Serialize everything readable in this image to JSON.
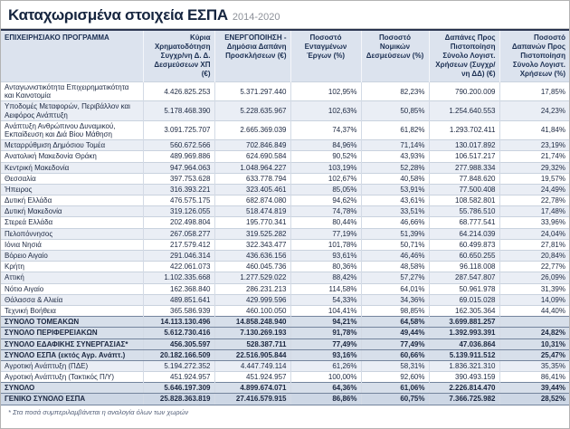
{
  "chart_data": {
    "type": "table",
    "title": "Καταχωρισμένα στοιχεία ΕΣΠΑ",
    "subtitle": "2014-2020",
    "columns": [
      "ΕΠΙΧΕΙΡΗΣΙΑΚΟ ΠΡΟΓΡΑΜΜΑ",
      "Κύρια Χρηματοδότηση Συγχρ/νη Δ. Δ. Δεσμεύσεων ΧΠ (€)",
      "ΕΝΕΡΓΟΠΟΙΗΣΗ - Δημόσια Δαπάνη Προσκλήσεων (€)",
      "Ποσοστό Ενταγμένων Έργων (%)",
      "Ποσοστό Νομικών Δεσμεύσεων (%)",
      "Δαπάνες Προς Πιστοποίηση Σύνολο Λογιστ. Χρήσεων (Συγχρ/νη ΔΔ) (€)",
      "Ποσοστό Δαπανών Προς Πιστοποίηση Σύνολο Λογιστ. Χρήσεων (%)"
    ],
    "rows": [
      {
        "program": "Ανταγωνιστικότητα Επιχειρηματικότητα και Καινοτομία",
        "values": [
          "4.426.825.253",
          "5.371.297.440",
          "102,95%",
          "82,23%",
          "790.200.009",
          "17,85%"
        ],
        "row_style": "normal"
      },
      {
        "program": "Υποδομές Μεταφορών, Περιβάλλον και Αειφόρος Ανάπτυξη",
        "values": [
          "5.178.468.390",
          "5.228.635.967",
          "102,63%",
          "50,85%",
          "1.254.640.553",
          "24,23%"
        ],
        "row_style": "normal"
      },
      {
        "program": "Ανάπτυξη Ανθρώπινου Δυναμικού, Εκπαίδευση και Διά Βίου Μάθηση",
        "values": [
          "3.091.725.707",
          "2.665.369.039",
          "74,37%",
          "61,82%",
          "1.293.702.411",
          "41,84%"
        ],
        "row_style": "normal"
      },
      {
        "program": "Μεταρρύθμιση Δημόσιου Τομέα",
        "values": [
          "560.672.566",
          "702.846.849",
          "84,96%",
          "71,14%",
          "130.017.892",
          "23,19%"
        ],
        "row_style": "normal"
      },
      {
        "program": "Ανατολική Μακεδονία Θράκη",
        "values": [
          "489.969.886",
          "624.690.584",
          "90,52%",
          "43,93%",
          "106.517.217",
          "21,74%"
        ],
        "row_style": "normal"
      },
      {
        "program": "Κεντρική Μακεδονία",
        "values": [
          "947.964.063",
          "1.048.964.227",
          "103,19%",
          "52,28%",
          "277.988.334",
          "29,32%"
        ],
        "row_style": "normal"
      },
      {
        "program": "Θεσσαλία",
        "values": [
          "397.753.628",
          "633.778.794",
          "102,67%",
          "40,58%",
          "77.848.620",
          "19,57%"
        ],
        "row_style": "normal"
      },
      {
        "program": "Ήπειρος",
        "values": [
          "316.393.221",
          "323.405.461",
          "85,05%",
          "53,91%",
          "77.500.408",
          "24,49%"
        ],
        "row_style": "normal"
      },
      {
        "program": "Δυτική Ελλάδα",
        "values": [
          "476.575.175",
          "682.874.080",
          "94,62%",
          "43,61%",
          "108.582.801",
          "22,78%"
        ],
        "row_style": "normal"
      },
      {
        "program": "Δυτική Μακεδονία",
        "values": [
          "319.126.055",
          "518.474.819",
          "74,78%",
          "33,51%",
          "55.786.510",
          "17,48%"
        ],
        "row_style": "normal"
      },
      {
        "program": "Στερεά Ελλάδα",
        "values": [
          "202.498.804",
          "195.770.341",
          "80,44%",
          "46,66%",
          "68.777.541",
          "33,96%"
        ],
        "row_style": "normal"
      },
      {
        "program": "Πελοπόννησος",
        "values": [
          "267.058.277",
          "319.525.282",
          "77,19%",
          "51,39%",
          "64.214.039",
          "24,04%"
        ],
        "row_style": "normal"
      },
      {
        "program": "Ιόνια Νησιά",
        "values": [
          "217.579.412",
          "322.343.477",
          "101,78%",
          "50,71%",
          "60.499.873",
          "27,81%"
        ],
        "row_style": "normal"
      },
      {
        "program": "Βόρειο Αιγαίο",
        "values": [
          "291.046.314",
          "436.636.156",
          "93,61%",
          "46,46%",
          "60.650.255",
          "20,84%"
        ],
        "row_style": "normal"
      },
      {
        "program": "Κρήτη",
        "values": [
          "422.061.073",
          "460.045.736",
          "80,36%",
          "48,58%",
          "96.118.008",
          "22,77%"
        ],
        "row_style": "normal"
      },
      {
        "program": "Αττική",
        "values": [
          "1.102.335.668",
          "1.277.529.022",
          "88,42%",
          "57,27%",
          "287.547.807",
          "26,09%"
        ],
        "row_style": "normal"
      },
      {
        "program": "Νότιο Αιγαίο",
        "values": [
          "162.368.840",
          "286.231.213",
          "114,58%",
          "64,01%",
          "50.961.978",
          "31,39%"
        ],
        "row_style": "normal"
      },
      {
        "program": "Θάλασσα & Αλιεία",
        "values": [
          "489.851.641",
          "429.999.596",
          "54,33%",
          "34,36%",
          "69.015.028",
          "14,09%"
        ],
        "row_style": "normal"
      },
      {
        "program": "Τεχνική Βοήθεια",
        "values": [
          "365.586.939",
          "460.100.050",
          "104,41%",
          "98,85%",
          "162.305.364",
          "44,40%"
        ],
        "row_style": "normal"
      },
      {
        "program": "ΣΥΝΟΛΟ ΤΟΜΕΑΚΩΝ",
        "values": [
          "14.113.130.496",
          "14.858.248.940",
          "94,21%",
          "64,58%",
          "3.699.881.257",
          ""
        ],
        "row_style": "total"
      },
      {
        "program": "ΣΥΝΟΛΟ ΠΕΡΙΦΕΡΕΙΑΚΩΝ",
        "values": [
          "5.612.730.416",
          "7.130.269.193",
          "91,78%",
          "49,44%",
          "1.392.993.391",
          "24,82%"
        ],
        "row_style": "total"
      },
      {
        "program": "ΣΥΝΟΛΟ ΕΔΑΦΙΚΗΣ ΣΥΝΕΡΓΑΣΙΑΣ*",
        "values": [
          "456.305.597",
          "528.387.711",
          "77,49%",
          "77,49%",
          "47.036.864",
          "10,31%"
        ],
        "row_style": "total"
      },
      {
        "program": "ΣΥΝΟΛΟ ΕΣΠΑ (εκτός Αγρ. Ανάπτ.)",
        "values": [
          "20.182.166.509",
          "22.516.905.844",
          "93,16%",
          "60,66%",
          "5.139.911.512",
          "25,47%"
        ],
        "row_style": "total"
      },
      {
        "program": "Αγροτική Ανάπτυξη (ΠΔΕ)",
        "values": [
          "5.194.272.352",
          "4.447.749.114",
          "61,26%",
          "58,31%",
          "1.836.321.310",
          "35,35%"
        ],
        "row_style": "normal"
      },
      {
        "program": "Αγροτική Ανάπτυξη (Τακτικός Π/Υ)",
        "values": [
          "451.924.957",
          "451.924.957",
          "100,00%",
          "92,60%",
          "390.493.159",
          "86,41%"
        ],
        "row_style": "normal"
      },
      {
        "program": "ΣΥΝΟΛΟ",
        "values": [
          "5.646.197.309",
          "4.899.674.071",
          "64,36%",
          "61,06%",
          "2.226.814.470",
          "39,44%"
        ],
        "row_style": "total"
      },
      {
        "program": "ΓΕΝΙΚΟ ΣΥΝΟΛΟ ΕΣΠΑ",
        "values": [
          "25.828.363.819",
          "27.416.579.915",
          "86,86%",
          "60,75%",
          "7.366.725.982",
          "28,52%"
        ],
        "row_style": "grand"
      }
    ],
    "footnote": "* Στα ποσά συμπεριλαμβάνεται η αναλογία όλων των χωρών",
    "layout": {
      "grid": "row-and-column-rules",
      "alternating_rows": true
    }
  },
  "colors": {
    "title_text": "#16253f",
    "period_text": "#8d9199",
    "header_bg": "#dce3ee",
    "alt_row_bg": "#eaeef5",
    "total_row_bg": "#d7dfea",
    "grand_row_bg": "#cdd7e5",
    "rule_dark": "#2a3550"
  }
}
